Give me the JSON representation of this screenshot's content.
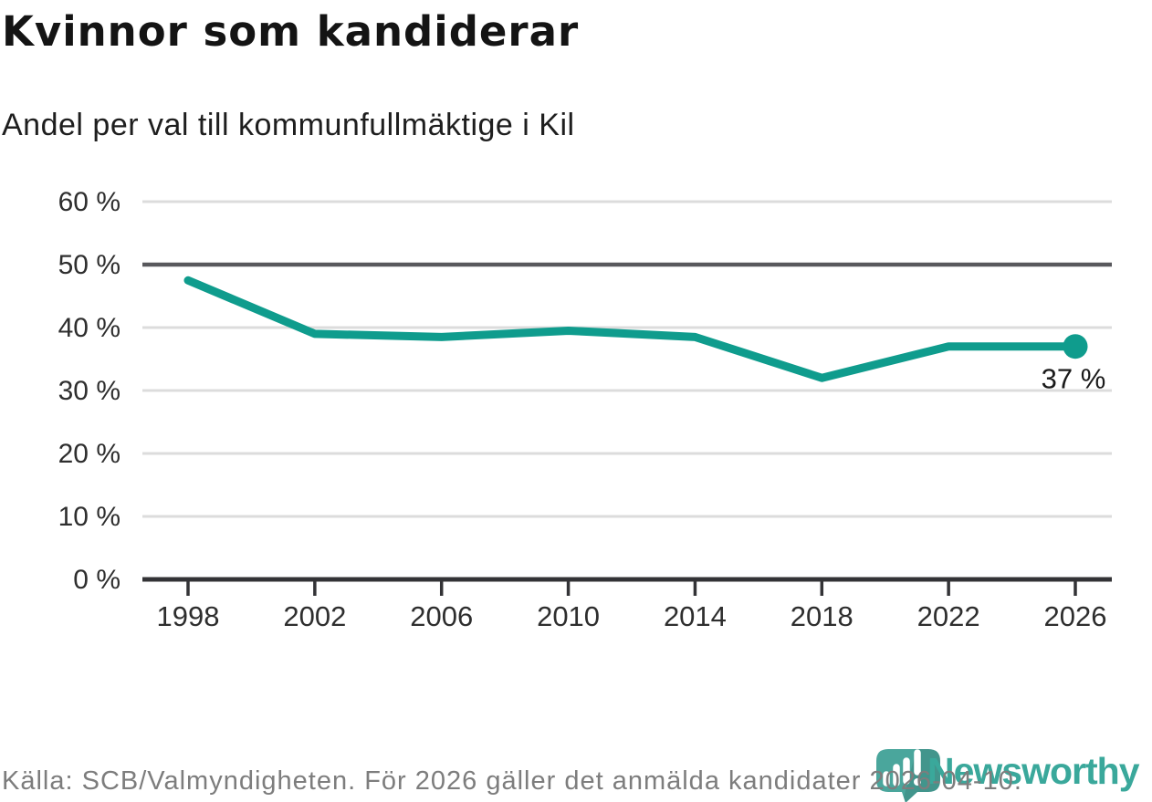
{
  "header": {
    "title": "Kvinnor som kandiderar",
    "subtitle": "Andel per val till kommunfullmäktige i Kil"
  },
  "footer": {
    "source_text": "Källa: SCB/Valmyndigheten. För 2026 gäller det anmälda kandidater 2026-04-10."
  },
  "branding": {
    "wordmark": "Newsworthy",
    "logo_icon": "newsworthy-pin-barchart-icon",
    "teal": "#3aa89b",
    "pin_color": "#4aa69c"
  },
  "chart_data": {
    "type": "line",
    "title": "Kvinnor som kandiderar",
    "subtitle": "Andel per val till kommunfullmäktige i Kil",
    "categories": [
      "1998",
      "2002",
      "2006",
      "2010",
      "2014",
      "2018",
      "2022",
      "2026"
    ],
    "values": [
      47.5,
      39,
      38.5,
      39.5,
      38.5,
      32,
      37,
      37
    ],
    "ylim": [
      0,
      60
    ],
    "ytick_step": 10,
    "ytick_labels": [
      "0 %",
      "10 %",
      "20 %",
      "30 %",
      "40 %",
      "50 %",
      "60 %"
    ],
    "emphasized_gridline_value": 50,
    "end_point_label": "37 %",
    "line_color": "#0f9c8d",
    "grid": true,
    "legend": "none",
    "colors": {
      "grid_light": "#dcdcdc",
      "grid_dark": "#58585c",
      "axis": "#333336",
      "tick_label": "#2e2e2e",
      "annotation": "#1a1a1a"
    }
  }
}
